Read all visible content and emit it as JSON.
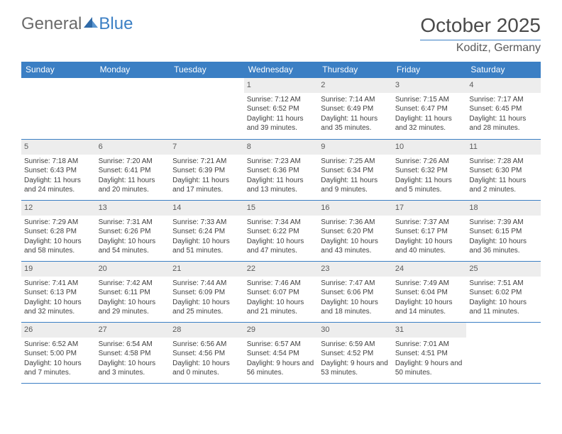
{
  "brand": {
    "part1": "General",
    "part2": "Blue"
  },
  "title": "October 2025",
  "location": "Koditz, Germany",
  "day_headers": [
    "Sunday",
    "Monday",
    "Tuesday",
    "Wednesday",
    "Thursday",
    "Friday",
    "Saturday"
  ],
  "colors": {
    "header_bg": "#3b7fc4",
    "rule": "#3b7fc4",
    "daynum_bg": "#ededed",
    "text": "#404040",
    "title_text": "#4a4a4a"
  },
  "weeks": [
    [
      {
        "n": "",
        "empty": true,
        "sr": "",
        "ss": "",
        "dl": ""
      },
      {
        "n": "",
        "empty": true,
        "sr": "",
        "ss": "",
        "dl": ""
      },
      {
        "n": "",
        "empty": true,
        "sr": "",
        "ss": "",
        "dl": ""
      },
      {
        "n": "1",
        "sr": "Sunrise: 7:12 AM",
        "ss": "Sunset: 6:52 PM",
        "dl": "Daylight: 11 hours and 39 minutes."
      },
      {
        "n": "2",
        "sr": "Sunrise: 7:14 AM",
        "ss": "Sunset: 6:49 PM",
        "dl": "Daylight: 11 hours and 35 minutes."
      },
      {
        "n": "3",
        "sr": "Sunrise: 7:15 AM",
        "ss": "Sunset: 6:47 PM",
        "dl": "Daylight: 11 hours and 32 minutes."
      },
      {
        "n": "4",
        "sr": "Sunrise: 7:17 AM",
        "ss": "Sunset: 6:45 PM",
        "dl": "Daylight: 11 hours and 28 minutes."
      }
    ],
    [
      {
        "n": "5",
        "sr": "Sunrise: 7:18 AM",
        "ss": "Sunset: 6:43 PM",
        "dl": "Daylight: 11 hours and 24 minutes."
      },
      {
        "n": "6",
        "sr": "Sunrise: 7:20 AM",
        "ss": "Sunset: 6:41 PM",
        "dl": "Daylight: 11 hours and 20 minutes."
      },
      {
        "n": "7",
        "sr": "Sunrise: 7:21 AM",
        "ss": "Sunset: 6:39 PM",
        "dl": "Daylight: 11 hours and 17 minutes."
      },
      {
        "n": "8",
        "sr": "Sunrise: 7:23 AM",
        "ss": "Sunset: 6:36 PM",
        "dl": "Daylight: 11 hours and 13 minutes."
      },
      {
        "n": "9",
        "sr": "Sunrise: 7:25 AM",
        "ss": "Sunset: 6:34 PM",
        "dl": "Daylight: 11 hours and 9 minutes."
      },
      {
        "n": "10",
        "sr": "Sunrise: 7:26 AM",
        "ss": "Sunset: 6:32 PM",
        "dl": "Daylight: 11 hours and 5 minutes."
      },
      {
        "n": "11",
        "sr": "Sunrise: 7:28 AM",
        "ss": "Sunset: 6:30 PM",
        "dl": "Daylight: 11 hours and 2 minutes."
      }
    ],
    [
      {
        "n": "12",
        "sr": "Sunrise: 7:29 AM",
        "ss": "Sunset: 6:28 PM",
        "dl": "Daylight: 10 hours and 58 minutes."
      },
      {
        "n": "13",
        "sr": "Sunrise: 7:31 AM",
        "ss": "Sunset: 6:26 PM",
        "dl": "Daylight: 10 hours and 54 minutes."
      },
      {
        "n": "14",
        "sr": "Sunrise: 7:33 AM",
        "ss": "Sunset: 6:24 PM",
        "dl": "Daylight: 10 hours and 51 minutes."
      },
      {
        "n": "15",
        "sr": "Sunrise: 7:34 AM",
        "ss": "Sunset: 6:22 PM",
        "dl": "Daylight: 10 hours and 47 minutes."
      },
      {
        "n": "16",
        "sr": "Sunrise: 7:36 AM",
        "ss": "Sunset: 6:20 PM",
        "dl": "Daylight: 10 hours and 43 minutes."
      },
      {
        "n": "17",
        "sr": "Sunrise: 7:37 AM",
        "ss": "Sunset: 6:17 PM",
        "dl": "Daylight: 10 hours and 40 minutes."
      },
      {
        "n": "18",
        "sr": "Sunrise: 7:39 AM",
        "ss": "Sunset: 6:15 PM",
        "dl": "Daylight: 10 hours and 36 minutes."
      }
    ],
    [
      {
        "n": "19",
        "sr": "Sunrise: 7:41 AM",
        "ss": "Sunset: 6:13 PM",
        "dl": "Daylight: 10 hours and 32 minutes."
      },
      {
        "n": "20",
        "sr": "Sunrise: 7:42 AM",
        "ss": "Sunset: 6:11 PM",
        "dl": "Daylight: 10 hours and 29 minutes."
      },
      {
        "n": "21",
        "sr": "Sunrise: 7:44 AM",
        "ss": "Sunset: 6:09 PM",
        "dl": "Daylight: 10 hours and 25 minutes."
      },
      {
        "n": "22",
        "sr": "Sunrise: 7:46 AM",
        "ss": "Sunset: 6:07 PM",
        "dl": "Daylight: 10 hours and 21 minutes."
      },
      {
        "n": "23",
        "sr": "Sunrise: 7:47 AM",
        "ss": "Sunset: 6:06 PM",
        "dl": "Daylight: 10 hours and 18 minutes."
      },
      {
        "n": "24",
        "sr": "Sunrise: 7:49 AM",
        "ss": "Sunset: 6:04 PM",
        "dl": "Daylight: 10 hours and 14 minutes."
      },
      {
        "n": "25",
        "sr": "Sunrise: 7:51 AM",
        "ss": "Sunset: 6:02 PM",
        "dl": "Daylight: 10 hours and 11 minutes."
      }
    ],
    [
      {
        "n": "26",
        "sr": "Sunrise: 6:52 AM",
        "ss": "Sunset: 5:00 PM",
        "dl": "Daylight: 10 hours and 7 minutes."
      },
      {
        "n": "27",
        "sr": "Sunrise: 6:54 AM",
        "ss": "Sunset: 4:58 PM",
        "dl": "Daylight: 10 hours and 3 minutes."
      },
      {
        "n": "28",
        "sr": "Sunrise: 6:56 AM",
        "ss": "Sunset: 4:56 PM",
        "dl": "Daylight: 10 hours and 0 minutes."
      },
      {
        "n": "29",
        "sr": "Sunrise: 6:57 AM",
        "ss": "Sunset: 4:54 PM",
        "dl": "Daylight: 9 hours and 56 minutes."
      },
      {
        "n": "30",
        "sr": "Sunrise: 6:59 AM",
        "ss": "Sunset: 4:52 PM",
        "dl": "Daylight: 9 hours and 53 minutes."
      },
      {
        "n": "31",
        "sr": "Sunrise: 7:01 AM",
        "ss": "Sunset: 4:51 PM",
        "dl": "Daylight: 9 hours and 50 minutes."
      },
      {
        "n": "",
        "empty": true,
        "sr": "",
        "ss": "",
        "dl": ""
      }
    ]
  ]
}
